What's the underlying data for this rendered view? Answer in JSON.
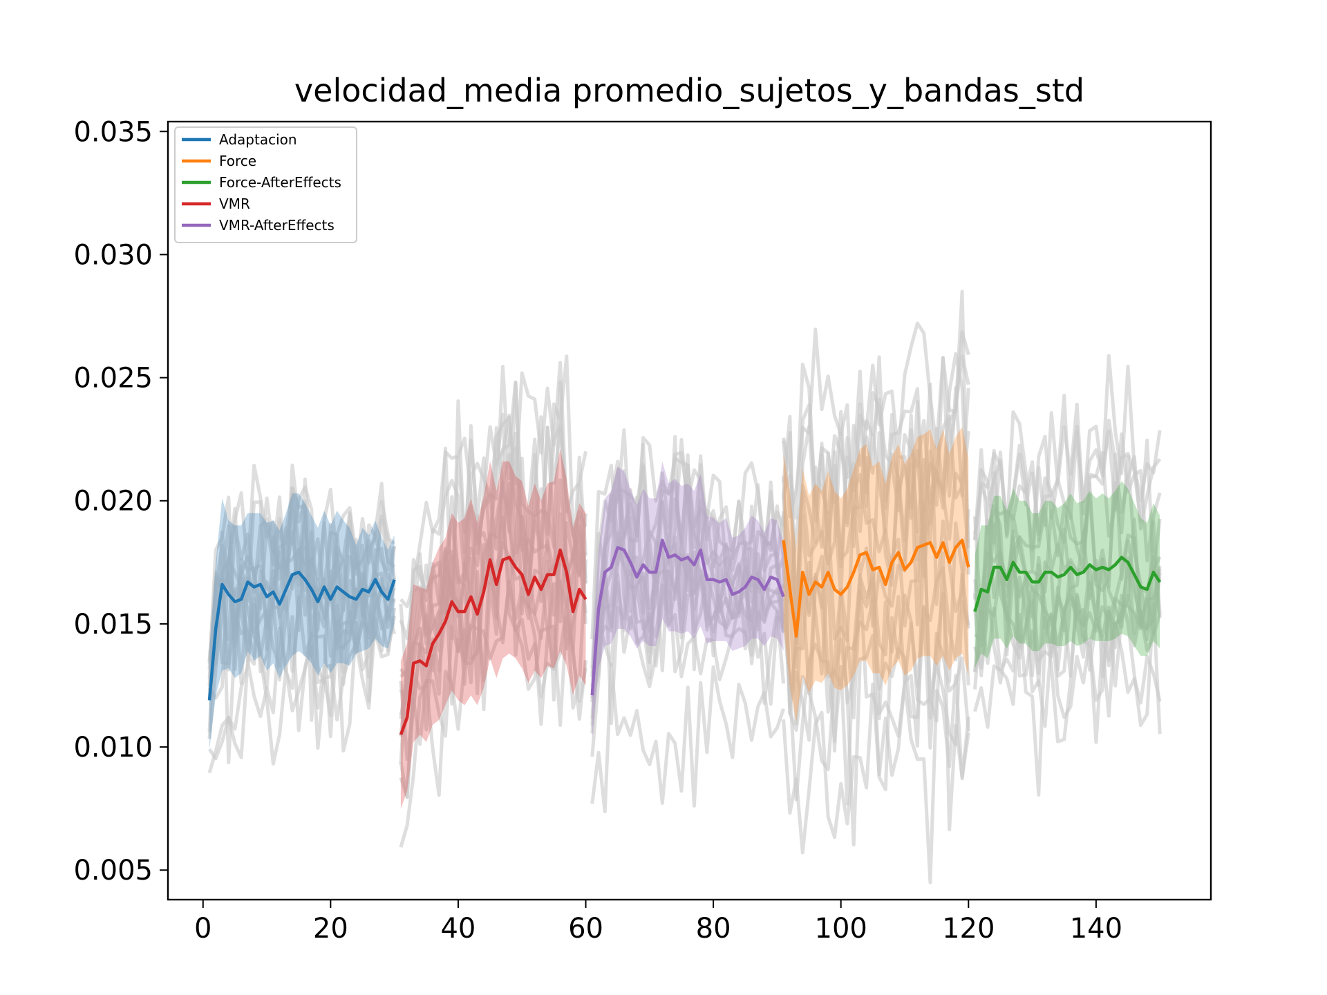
{
  "chart_data": {
    "type": "line",
    "title": "velocidad_media promedio_sujetos_y_bandas_std",
    "xlabel": "",
    "ylabel": "",
    "xlim": [
      -5.5,
      158
    ],
    "ylim": [
      0.0038,
      0.0354
    ],
    "xticks": [
      0,
      20,
      40,
      60,
      80,
      100,
      120,
      140
    ],
    "xtick_labels": [
      "0",
      "20",
      "40",
      "60",
      "80",
      "100",
      "120",
      "140"
    ],
    "yticks": [
      0.005,
      0.01,
      0.015,
      0.02,
      0.025,
      0.03,
      0.035
    ],
    "ytick_labels": [
      "0.005",
      "0.010",
      "0.015",
      "0.020",
      "0.025",
      "0.030",
      "0.035"
    ],
    "grid": false,
    "legend_position": "upper-left",
    "band": "mean ± std (shaded)",
    "background_traces": "individual subjects (grey, semi-transparent)",
    "series": [
      {
        "name": "Adaptacion",
        "color": "#1f77b4",
        "x_start": 1,
        "mean": [
          0.0119,
          0.0148,
          0.0166,
          0.0162,
          0.0159,
          0.016,
          0.0167,
          0.0165,
          0.0166,
          0.0161,
          0.0163,
          0.0158,
          0.0164,
          0.017,
          0.0171,
          0.0168,
          0.0164,
          0.0159,
          0.0165,
          0.016,
          0.0165,
          0.0163,
          0.0161,
          0.016,
          0.0164,
          0.0163,
          0.0168,
          0.0163,
          0.016,
          0.0168
        ],
        "std": [
          0.002,
          0.0027,
          0.0035,
          0.003,
          0.0031,
          0.003,
          0.0028,
          0.003,
          0.0029,
          0.003,
          0.0029,
          0.003,
          0.0031,
          0.0033,
          0.0032,
          0.0031,
          0.003,
          0.003,
          0.0031,
          0.003,
          0.0031,
          0.0029,
          0.0028,
          0.0022,
          0.0025,
          0.0023,
          0.0024,
          0.0022,
          0.002,
          0.0018
        ]
      },
      {
        "name": "VMR",
        "color": "#d62728",
        "x_start": 31,
        "mean": [
          0.0105,
          0.0112,
          0.0134,
          0.0135,
          0.0133,
          0.0142,
          0.0146,
          0.0151,
          0.0159,
          0.0155,
          0.0155,
          0.0161,
          0.0154,
          0.0163,
          0.0176,
          0.0166,
          0.0176,
          0.0177,
          0.0173,
          0.017,
          0.0162,
          0.0169,
          0.0164,
          0.017,
          0.017,
          0.018,
          0.0171,
          0.0155,
          0.0164,
          0.016
        ],
        "std": [
          0.003,
          0.003,
          0.0032,
          0.003,
          0.0031,
          0.0033,
          0.0035,
          0.0034,
          0.0036,
          0.0036,
          0.0038,
          0.004,
          0.0037,
          0.0039,
          0.004,
          0.0038,
          0.004,
          0.0039,
          0.0037,
          0.0038,
          0.0036,
          0.0038,
          0.0036,
          0.0037,
          0.0038,
          0.0041,
          0.0038,
          0.0034,
          0.0035,
          0.0035
        ]
      },
      {
        "name": "VMR-AfterEffects",
        "color": "#9467bd",
        "x_start": 61,
        "mean": [
          0.0121,
          0.0156,
          0.0171,
          0.0173,
          0.0181,
          0.018,
          0.0175,
          0.0169,
          0.0174,
          0.0171,
          0.0171,
          0.0184,
          0.0177,
          0.0178,
          0.0176,
          0.0177,
          0.0174,
          0.018,
          0.0168,
          0.0168,
          0.0167,
          0.0168,
          0.0162,
          0.0163,
          0.0165,
          0.0169,
          0.0168,
          0.0164,
          0.0169,
          0.0168,
          0.0161
        ],
        "std": [
          0.0018,
          0.0024,
          0.003,
          0.0031,
          0.0033,
          0.0032,
          0.003,
          0.0029,
          0.0031,
          0.003,
          0.003,
          0.0032,
          0.003,
          0.0031,
          0.003,
          0.003,
          0.003,
          0.0031,
          0.0026,
          0.0025,
          0.0024,
          0.0025,
          0.0023,
          0.0023,
          0.0024,
          0.0025,
          0.0024,
          0.0023,
          0.0024,
          0.0024,
          0.0022
        ]
      },
      {
        "name": "Force",
        "color": "#ff7f0e",
        "x_start": 91,
        "mean": [
          0.0184,
          0.0164,
          0.0145,
          0.0171,
          0.0162,
          0.0167,
          0.0165,
          0.0171,
          0.0164,
          0.0162,
          0.0165,
          0.0171,
          0.0178,
          0.0179,
          0.0172,
          0.0173,
          0.0166,
          0.0175,
          0.0179,
          0.0172,
          0.0175,
          0.0181,
          0.0182,
          0.0183,
          0.0177,
          0.0183,
          0.0175,
          0.0181,
          0.0184,
          0.0173
        ],
        "std": [
          0.0035,
          0.004,
          0.0035,
          0.0042,
          0.004,
          0.004,
          0.0039,
          0.0041,
          0.004,
          0.0039,
          0.004,
          0.0042,
          0.0043,
          0.0044,
          0.0042,
          0.0043,
          0.0041,
          0.0043,
          0.0044,
          0.0043,
          0.0044,
          0.0045,
          0.0045,
          0.0046,
          0.0044,
          0.0046,
          0.0044,
          0.0045,
          0.0046,
          0.0044
        ]
      },
      {
        "name": "Force-AfterEffects",
        "color": "#2ca02c",
        "x_start": 121,
        "mean": [
          0.0155,
          0.0164,
          0.0163,
          0.0173,
          0.0173,
          0.0168,
          0.0175,
          0.0171,
          0.0171,
          0.0167,
          0.0167,
          0.0171,
          0.0171,
          0.0169,
          0.017,
          0.0173,
          0.017,
          0.0171,
          0.0174,
          0.0172,
          0.0173,
          0.0172,
          0.0174,
          0.0177,
          0.0175,
          0.017,
          0.0165,
          0.0164,
          0.0171,
          0.0167
        ],
        "std": [
          0.0023,
          0.0026,
          0.0027,
          0.0029,
          0.0029,
          0.0028,
          0.003,
          0.0029,
          0.0029,
          0.0028,
          0.0028,
          0.0029,
          0.0029,
          0.0028,
          0.0029,
          0.003,
          0.0029,
          0.0029,
          0.003,
          0.0029,
          0.003,
          0.0029,
          0.003,
          0.0031,
          0.003,
          0.0029,
          0.0028,
          0.0027,
          0.0028,
          0.0027
        ]
      }
    ],
    "legend": [
      {
        "name": "Adaptacion",
        "color": "#1f77b4"
      },
      {
        "name": "Force",
        "color": "#ff7f0e"
      },
      {
        "name": "Force-AfterEffects",
        "color": "#2ca02c"
      },
      {
        "name": "VMR",
        "color": "#d62728"
      },
      {
        "name": "VMR-AfterEffects",
        "color": "#9467bd"
      }
    ]
  }
}
